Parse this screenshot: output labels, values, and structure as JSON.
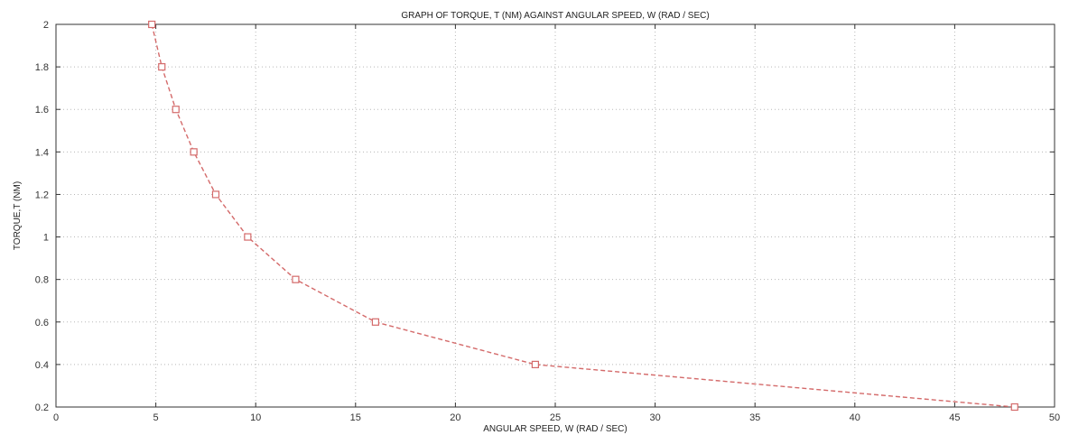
{
  "chart_data": {
    "type": "line",
    "title": "GRAPH OF TORQUE,  T (NM)  AGAINST ANGULAR SPEED, W (RAD / SEC)",
    "xlabel": "ANGULAR SPEED, W (RAD / SEC)",
    "ylabel": "TORQUE,T (NM)",
    "xlim": [
      0,
      50
    ],
    "ylim": [
      0.2,
      2
    ],
    "xticks": [
      "0",
      "5",
      "10",
      "15",
      "20",
      "25",
      "30",
      "35",
      "40",
      "45",
      "50"
    ],
    "yticks": [
      "0.2",
      "0.4",
      "0.6",
      "0.8",
      "1",
      "1.2",
      "1.4",
      "1.6",
      "1.8",
      "2"
    ],
    "grid": true,
    "series": [
      {
        "x": [
          4.8,
          5.3,
          6.0,
          6.9,
          8.0,
          9.6,
          12.0,
          16.0,
          24.0,
          48.0
        ],
        "y": [
          2.0,
          1.8,
          1.6,
          1.4,
          1.2,
          1.0,
          0.8,
          0.6,
          0.4,
          0.2
        ],
        "color": "#d46a6a",
        "line_style": "dashed",
        "marker": "square"
      }
    ]
  }
}
